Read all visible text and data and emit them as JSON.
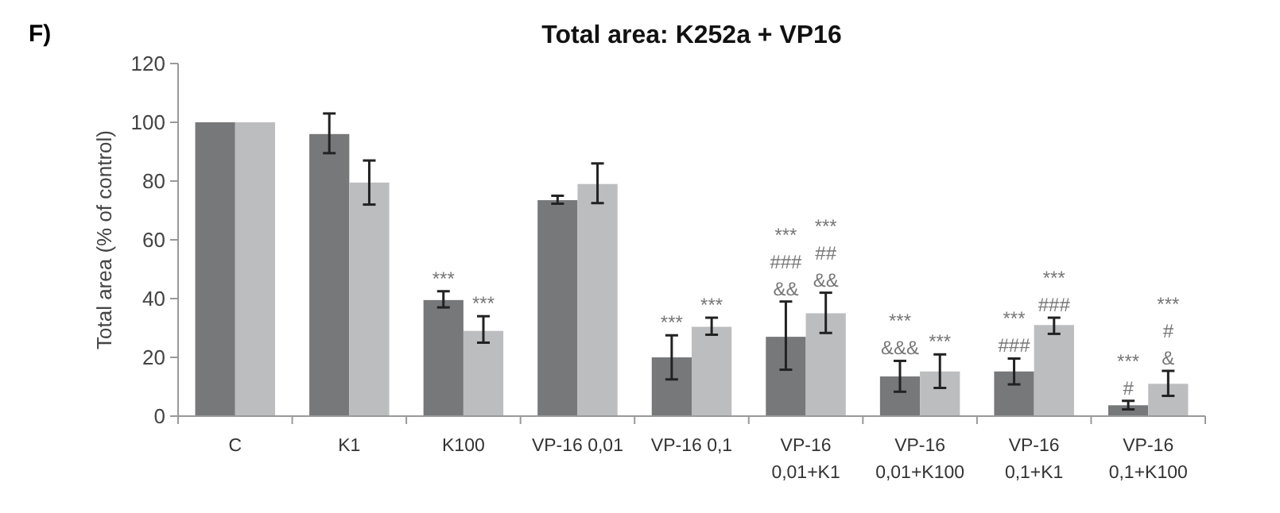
{
  "chart_data": {
    "type": "bar",
    "title": "Total area: K252a + VP16",
    "ylabel": "Total area (% of control)",
    "categories": [
      "C",
      "K1",
      "K100",
      "VP-16 0,01",
      "VP-16 0,1",
      "VP-16 0,01+K1",
      "VP-16 0,01+K100",
      "VP-16 0,1+K1",
      "VP-16 0,1+K100"
    ],
    "series": [
      {
        "color": "#77787a",
        "values": [
          100,
          96,
          39.5,
          73.5,
          20,
          27,
          13.5,
          15.2,
          3.7
        ],
        "errors": [
          null,
          [
            89.5,
            103
          ],
          [
            37,
            42.5
          ],
          [
            72.3,
            75
          ],
          [
            12.5,
            27.5
          ],
          [
            15.8,
            39
          ],
          [
            8.3,
            18.8
          ],
          [
            10.8,
            19.6
          ],
          [
            2.3,
            5.2
          ]
        ]
      },
      {
        "color": "#bcbdbf",
        "values": [
          100,
          79.5,
          29,
          79,
          30.4,
          35,
          15.2,
          31,
          11
        ],
        "errors": [
          null,
          [
            72,
            87
          ],
          [
            25,
            34
          ],
          [
            72.5,
            86
          ],
          [
            27.7,
            33.5
          ],
          [
            28.3,
            42
          ],
          [
            9.6,
            21
          ],
          [
            28,
            33.5
          ],
          [
            6.9,
            15.4
          ]
        ]
      }
    ],
    "ylim": [
      0,
      120
    ],
    "yticks": [
      0,
      20,
      40,
      60,
      80,
      100,
      120
    ],
    "grid": false,
    "annotations": [
      "F)",
      "***",
      "***",
      "***",
      "***",
      "***\n###\n&&",
      "***\n##\n&&",
      "***\n&&&",
      "***",
      "***\n###",
      "***\n###",
      "***\n#",
      "***\n#\n&"
    ]
  }
}
